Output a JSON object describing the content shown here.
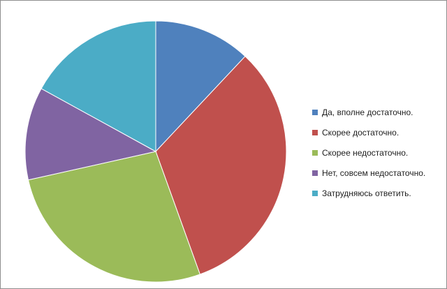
{
  "chart_data": {
    "type": "pie",
    "title": "",
    "start_angle_deg": 0,
    "direction": "clockwise",
    "legend_position": "right",
    "slices": [
      {
        "label": "Да, вполне достаточно.",
        "value": 12.0,
        "color": "#4F81BD"
      },
      {
        "label": "Скорее достаточно.",
        "value": 32.5,
        "color": "#C0504D"
      },
      {
        "label": "Скорее недостаточно.",
        "value": 27.0,
        "color": "#9BBB59"
      },
      {
        "label": "Нет, совсем недостаточно.",
        "value": 11.5,
        "color": "#8064A2"
      },
      {
        "label": "Затрудняюсь ответить.",
        "value": 17.0,
        "color": "#4BACC6"
      }
    ]
  }
}
